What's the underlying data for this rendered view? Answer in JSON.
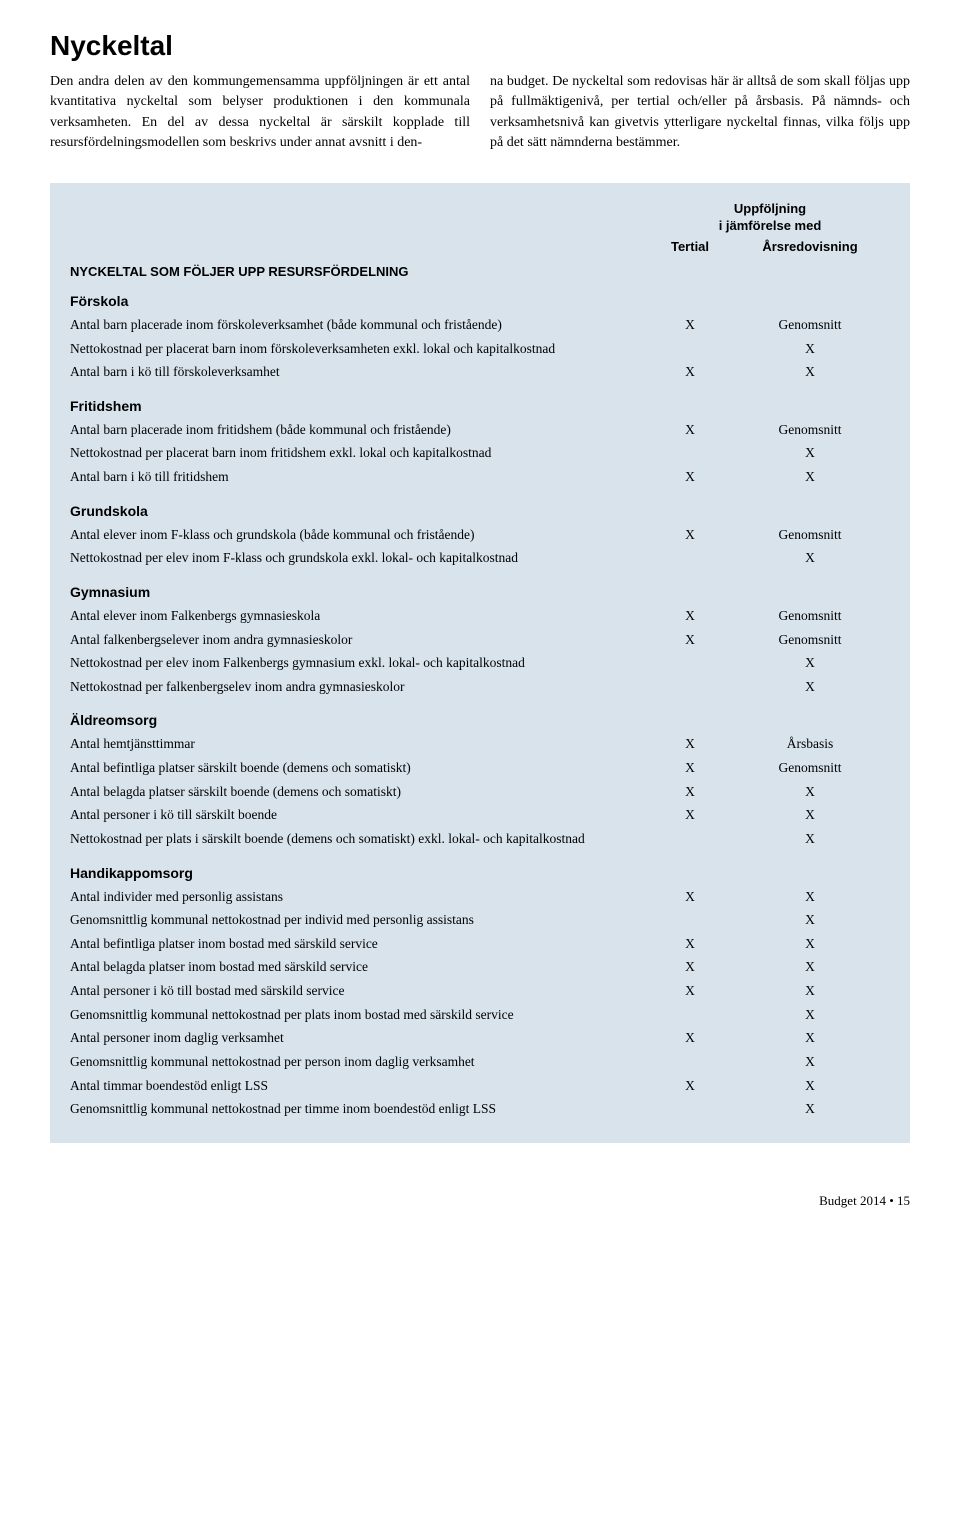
{
  "title": "Nyckeltal",
  "intro": {
    "col1": "Den andra delen av den kommungemensamma uppföljningen är ett antal kvantitativa nyckeltal som belyser produktionen i den kommunala verksamheten. En del av dessa nyckeltal är särskilt kopplade till resursfördelningsmodellen som beskrivs under annat avsnitt i den-",
    "col2": "na budget. De nyckeltal som redovisas här är alltså de som skall följas upp på fullmäktigenivå, per tertial och/eller på årsbasis. På nämnds- och verksamhetsnivå kan givetvis ytterligare nyckeltal finnas, vilka följs upp på det sätt nämnderna bestämmer."
  },
  "header": {
    "group": "Uppföljning\ni jämförelse med",
    "col_tertial": "Tertial",
    "col_arsred": "Årsredovisning"
  },
  "main_section": "NYCKELTAL SOM FÖLJER UPP RESURSFÖRDELNING",
  "groups": [
    {
      "title": "Förskola",
      "rows": [
        {
          "label": "Antal barn placerade inom förskoleverksamhet (både kommunal och fristående)",
          "tertial": "X",
          "arsred": "Genomsnitt"
        },
        {
          "label": "Nettokostnad per placerat barn inom förskoleverksamheten exkl. lokal och kapitalkostnad",
          "tertial": "",
          "arsred": "X"
        },
        {
          "label": "Antal barn i kö till förskoleverksamhet",
          "tertial": "X",
          "arsred": "X"
        }
      ]
    },
    {
      "title": "Fritidshem",
      "rows": [
        {
          "label": "Antal barn placerade inom fritidshem (både kommunal och fristående)",
          "tertial": "X",
          "arsred": "Genomsnitt"
        },
        {
          "label": "Nettokostnad per placerat barn inom fritidshem exkl. lokal och kapitalkostnad",
          "tertial": "",
          "arsred": "X"
        },
        {
          "label": "Antal barn i kö till fritidshem",
          "tertial": "X",
          "arsred": "X"
        }
      ]
    },
    {
      "title": "Grundskola",
      "rows": [
        {
          "label": "Antal elever inom F-klass och grundskola (både kommunal och fristående)",
          "tertial": "X",
          "arsred": "Genomsnitt"
        },
        {
          "label": "Nettokostnad per elev inom F-klass och grundskola exkl. lokal- och kapitalkostnad",
          "tertial": "",
          "arsred": "X"
        }
      ]
    },
    {
      "title": "Gymnasium",
      "rows": [
        {
          "label": "Antal elever inom Falkenbergs gymnasieskola",
          "tertial": "X",
          "arsred": "Genomsnitt"
        },
        {
          "label": "Antal falkenbergselever inom andra gymnasieskolor",
          "tertial": "X",
          "arsred": "Genomsnitt"
        },
        {
          "label": "Nettokostnad per elev inom Falkenbergs gymnasium exkl. lokal- och kapitalkostnad",
          "tertial": "",
          "arsred": "X"
        },
        {
          "label": "Nettokostnad per falkenbergselev inom andra gymnasieskolor",
          "tertial": "",
          "arsred": "X"
        }
      ]
    },
    {
      "title": "Äldreomsorg",
      "rows": [
        {
          "label": "Antal hemtjänsttimmar",
          "tertial": "X",
          "arsred": "Årsbasis"
        },
        {
          "label": "Antal befintliga platser särskilt boende (demens och somatiskt)",
          "tertial": "X",
          "arsred": "Genomsnitt"
        },
        {
          "label": "Antal belagda platser särskilt boende (demens och somatiskt)",
          "tertial": "X",
          "arsred": "X"
        },
        {
          "label": "Antal personer i  kö till särskilt boende",
          "tertial": "X",
          "arsred": "X"
        },
        {
          "label": "Nettokostnad per plats i särskilt boende (demens och somatiskt) exkl. lokal- och kapitalkostnad",
          "tertial": "",
          "arsred": "X"
        }
      ]
    },
    {
      "title": "Handikappomsorg",
      "rows": [
        {
          "label": "Antal individer med personlig assistans",
          "tertial": "X",
          "arsred": "X"
        },
        {
          "label": "Genomsnittlig kommunal nettokostnad per individ med personlig assistans",
          "tertial": "",
          "arsred": "X"
        },
        {
          "label": "Antal befintliga platser inom bostad med särskild service",
          "tertial": "X",
          "arsred": "X"
        },
        {
          "label": "Antal belagda platser inom bostad med särskild service",
          "tertial": "X",
          "arsred": "X"
        },
        {
          "label": "Antal personer i kö till bostad med särskild service",
          "tertial": "X",
          "arsred": "X"
        },
        {
          "label": "Genomsnittlig kommunal nettokostnad per plats inom bostad med särskild service",
          "tertial": "",
          "arsred": "X"
        },
        {
          "label": "Antal personer inom daglig verksamhet",
          "tertial": "X",
          "arsred": "X"
        },
        {
          "label": "Genomsnittlig kommunal nettokostnad per person inom daglig verksamhet",
          "tertial": "",
          "arsred": "X"
        },
        {
          "label": "Antal timmar boendestöd  enligt LSS",
          "tertial": "X",
          "arsred": "X"
        },
        {
          "label": "Genomsnittlig kommunal nettokostnad per timme inom boendestöd enligt LSS",
          "tertial": "",
          "arsred": "X"
        }
      ]
    }
  ],
  "footer": "Budget 2014 • 15"
}
